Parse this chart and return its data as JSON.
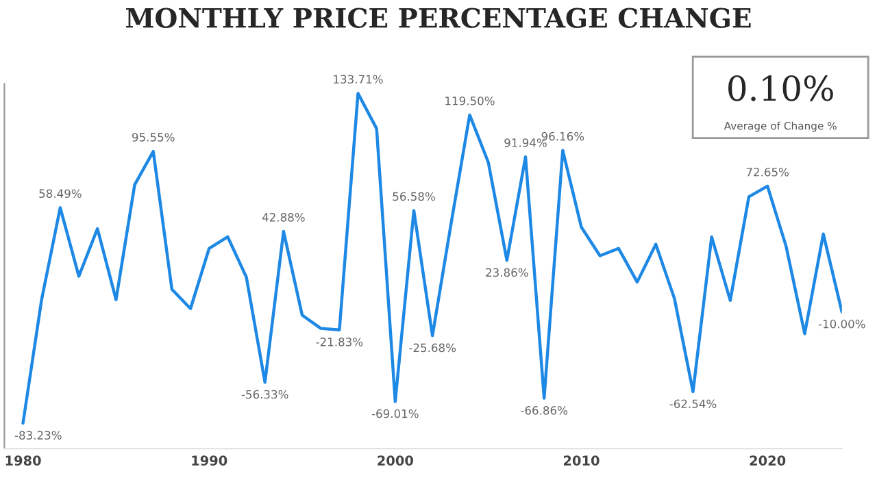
{
  "chart_data": {
    "type": "line",
    "title": "MONTHLY PRICE PERCENTAGE CHANGE",
    "x": [
      1980,
      1981,
      1982,
      1983,
      1984,
      1985,
      1986,
      1987,
      1988,
      1989,
      1990,
      1991,
      1992,
      1993,
      1994,
      1995,
      1996,
      1997,
      1998,
      1999,
      2000,
      2001,
      2002,
      2003,
      2004,
      2005,
      2006,
      2007,
      2008,
      2009,
      2010,
      2011,
      2012,
      2013,
      2014,
      2015,
      2016,
      2017,
      2018,
      2019,
      2020,
      2021,
      2022,
      2023,
      2024
    ],
    "series": [
      {
        "color": "#1e88e5",
        "values": [
          -83.23,
          -2,
          58.49,
          13.4,
          44.7,
          -2,
          73.6,
          95.55,
          4.8,
          -7.9,
          31.7,
          39.3,
          12.9,
          -56.33,
          42.88,
          -12.2,
          -20.9,
          -21.83,
          133.71,
          110.5,
          -69.01,
          56.58,
          -25.68,
          48,
          119.5,
          88.4,
          23.86,
          91.94,
          -66.86,
          96.16,
          45.7,
          26.9,
          31.7,
          9.6,
          34.4,
          -1.2,
          -62.54,
          39.3,
          -2.5,
          65.7,
          72.65,
          33.1,
          -24.4,
          41.2,
          -10.0
        ],
        "value_labels": [
          "-83.23%",
          null,
          "58.49%",
          null,
          null,
          null,
          null,
          "95.55%",
          null,
          null,
          null,
          null,
          null,
          "-56.33%",
          "42.88%",
          null,
          null,
          "-21.83%",
          "133.71%",
          null,
          "-69.01%",
          "56.58%",
          "-25.68%",
          null,
          "119.50%",
          null,
          "23.86%",
          "91.94%",
          "-66.86%",
          "96.16%",
          null,
          null,
          null,
          null,
          null,
          null,
          "-62.54%",
          null,
          null,
          null,
          "72.65%",
          null,
          null,
          null,
          "-10.00%"
        ]
      }
    ],
    "xticks": [
      1980,
      1990,
      2000,
      2010,
      2020
    ],
    "xlim": [
      1979,
      2024
    ],
    "ylim": [
      -100,
      140
    ],
    "tick_labels": "x",
    "grid": false,
    "legend": false,
    "marker": "none",
    "line_style": "solid",
    "annotations": [
      "0.10%",
      "Average of Change %"
    ]
  }
}
